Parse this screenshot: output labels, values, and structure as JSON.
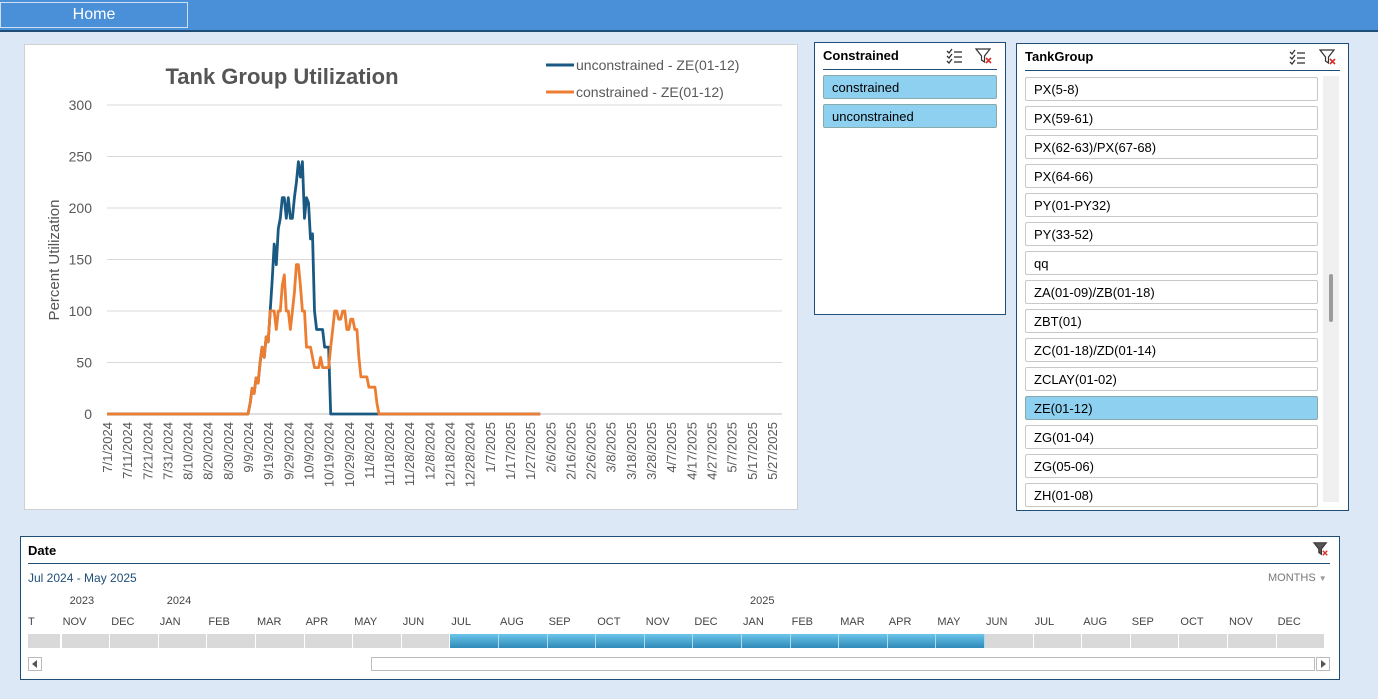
{
  "topbar": {
    "home_label": "Home"
  },
  "chart_data": {
    "type": "line",
    "title": "Tank Group Utilization",
    "ylabel": "Percent Utilization",
    "xlabel": "",
    "ylim": [
      0,
      300
    ],
    "yticks": [
      0,
      50,
      100,
      150,
      200,
      250,
      300
    ],
    "grid": true,
    "legend_position": "top-right",
    "categories": [
      "7/1/2024",
      "7/11/2024",
      "7/21/2024",
      "7/31/2024",
      "8/10/2024",
      "8/20/2024",
      "8/30/2024",
      "9/9/2024",
      "9/19/2024",
      "9/29/2024",
      "10/9/2024",
      "10/19/2024",
      "10/29/2024",
      "11/8/2024",
      "11/18/2024",
      "11/28/2024",
      "12/8/2024",
      "12/18/2024",
      "12/28/2024",
      "1/7/2025",
      "1/17/2025",
      "1/27/2025",
      "2/6/2025",
      "2/16/2025",
      "2/26/2025",
      "3/8/2025",
      "3/18/2025",
      "3/28/2025",
      "4/7/2025",
      "4/17/2025",
      "4/27/2025",
      "5/7/2025",
      "5/17/2025",
      "5/27/2025"
    ],
    "series": [
      {
        "name": "unconstrained - ZE(01-12)",
        "color": "#1a5a82",
        "points": [
          [
            0,
            0
          ],
          [
            70,
            0
          ],
          [
            71,
            10
          ],
          [
            72,
            25
          ],
          [
            73,
            20
          ],
          [
            74,
            35
          ],
          [
            75,
            30
          ],
          [
            76,
            50
          ],
          [
            77,
            65
          ],
          [
            78,
            55
          ],
          [
            79,
            75
          ],
          [
            80,
            70
          ],
          [
            81,
            100
          ],
          [
            82,
            130
          ],
          [
            83,
            165
          ],
          [
            84,
            145
          ],
          [
            85,
            180
          ],
          [
            86,
            190
          ],
          [
            87,
            210
          ],
          [
            88,
            210
          ],
          [
            89,
            190
          ],
          [
            90,
            210
          ],
          [
            91,
            190
          ],
          [
            92,
            190
          ],
          [
            93,
            210
          ],
          [
            94,
            225
          ],
          [
            95,
            245
          ],
          [
            96,
            230
          ],
          [
            97,
            245
          ],
          [
            98,
            190
          ],
          [
            99,
            210
          ],
          [
            100,
            205
          ],
          [
            101,
            170
          ],
          [
            102,
            175
          ],
          [
            103,
            100
          ],
          [
            104,
            82
          ],
          [
            105,
            82
          ],
          [
            106,
            82
          ],
          [
            107,
            82
          ],
          [
            108,
            65
          ],
          [
            109,
            65
          ],
          [
            110,
            65
          ],
          [
            111,
            0
          ],
          [
            215,
            0
          ]
        ]
      },
      {
        "name": "constrained - ZE(01-12)",
        "color": "#ed7d31",
        "points": [
          [
            0,
            0
          ],
          [
            70,
            0
          ],
          [
            71,
            10
          ],
          [
            72,
            25
          ],
          [
            73,
            20
          ],
          [
            74,
            35
          ],
          [
            75,
            30
          ],
          [
            76,
            50
          ],
          [
            77,
            65
          ],
          [
            78,
            55
          ],
          [
            79,
            75
          ],
          [
            80,
            70
          ],
          [
            81,
            100
          ],
          [
            82,
            100
          ],
          [
            83,
            100
          ],
          [
            84,
            82
          ],
          [
            85,
            100
          ],
          [
            86,
            100
          ],
          [
            87,
            125
          ],
          [
            88,
            135
          ],
          [
            89,
            100
          ],
          [
            90,
            100
          ],
          [
            91,
            82
          ],
          [
            92,
            100
          ],
          [
            93,
            118
          ],
          [
            94,
            145
          ],
          [
            95,
            145
          ],
          [
            96,
            125
          ],
          [
            97,
            100
          ],
          [
            98,
            100
          ],
          [
            99,
            65
          ],
          [
            100,
            65
          ],
          [
            101,
            65
          ],
          [
            102,
            55
          ],
          [
            103,
            45
          ],
          [
            104,
            45
          ],
          [
            105,
            45
          ],
          [
            106,
            55
          ],
          [
            107,
            45
          ],
          [
            108,
            45
          ],
          [
            109,
            45
          ],
          [
            110,
            45
          ],
          [
            111,
            65
          ],
          [
            112,
            82
          ],
          [
            113,
            100
          ],
          [
            114,
            100
          ],
          [
            115,
            92
          ],
          [
            116,
            92
          ],
          [
            117,
            100
          ],
          [
            118,
            100
          ],
          [
            119,
            82
          ],
          [
            120,
            82
          ],
          [
            121,
            92
          ],
          [
            122,
            92
          ],
          [
            123,
            82
          ],
          [
            124,
            82
          ],
          [
            125,
            55
          ],
          [
            126,
            36
          ],
          [
            127,
            36
          ],
          [
            128,
            36
          ],
          [
            129,
            36
          ],
          [
            130,
            26
          ],
          [
            131,
            26
          ],
          [
            132,
            26
          ],
          [
            133,
            26
          ],
          [
            134,
            10
          ],
          [
            135,
            0
          ],
          [
            215,
            0
          ]
        ]
      }
    ]
  },
  "constrained_slicer": {
    "title": "Constrained",
    "multiselect_icon": "multiselect-icon",
    "clear_filter_icon": "clear-filter-icon",
    "items": [
      {
        "label": "constrained",
        "selected": true
      },
      {
        "label": "unconstrained",
        "selected": true
      }
    ]
  },
  "tankgroup_slicer": {
    "title": "TankGroup",
    "multiselect_icon": "multiselect-icon",
    "clear_filter_icon": "clear-filter-icon",
    "items": [
      {
        "label": "PX(5-8)",
        "selected": false
      },
      {
        "label": "PX(59-61)",
        "selected": false
      },
      {
        "label": "PX(62-63)/PX(67-68)",
        "selected": false
      },
      {
        "label": "PX(64-66)",
        "selected": false
      },
      {
        "label": "PY(01-PY32)",
        "selected": false
      },
      {
        "label": "PY(33-52)",
        "selected": false
      },
      {
        "label": "qq",
        "selected": false
      },
      {
        "label": "ZA(01-09)/ZB(01-18)",
        "selected": false
      },
      {
        "label": "ZBT(01)",
        "selected": false
      },
      {
        "label": "ZC(01-18)/ZD(01-14)",
        "selected": false
      },
      {
        "label": "ZCLAY(01-02)",
        "selected": false
      },
      {
        "label": "ZE(01-12)",
        "selected": true
      },
      {
        "label": "ZG(01-04)",
        "selected": false
      },
      {
        "label": "ZG(05-06)",
        "selected": false
      },
      {
        "label": "ZH(01-08)",
        "selected": false
      }
    ]
  },
  "date_slicer": {
    "title": "Date",
    "range_label": "Jul 2024 - May 2025",
    "level_label": "MONTHS",
    "years": [
      {
        "label": "2023",
        "month_index": 1
      },
      {
        "label": "2024",
        "month_index": 3
      },
      {
        "label": "2025",
        "month_index": 15
      }
    ],
    "months": [
      "T",
      "NOV",
      "DEC",
      "JAN",
      "FEB",
      "MAR",
      "APR",
      "MAY",
      "JUN",
      "JUL",
      "AUG",
      "SEP",
      "OCT",
      "NOV",
      "DEC",
      "JAN",
      "FEB",
      "MAR",
      "APR",
      "MAY",
      "JUN",
      "JUL",
      "AUG",
      "SEP",
      "OCT",
      "NOV",
      "DEC"
    ],
    "selected_from": 9,
    "selected_to": 19
  }
}
